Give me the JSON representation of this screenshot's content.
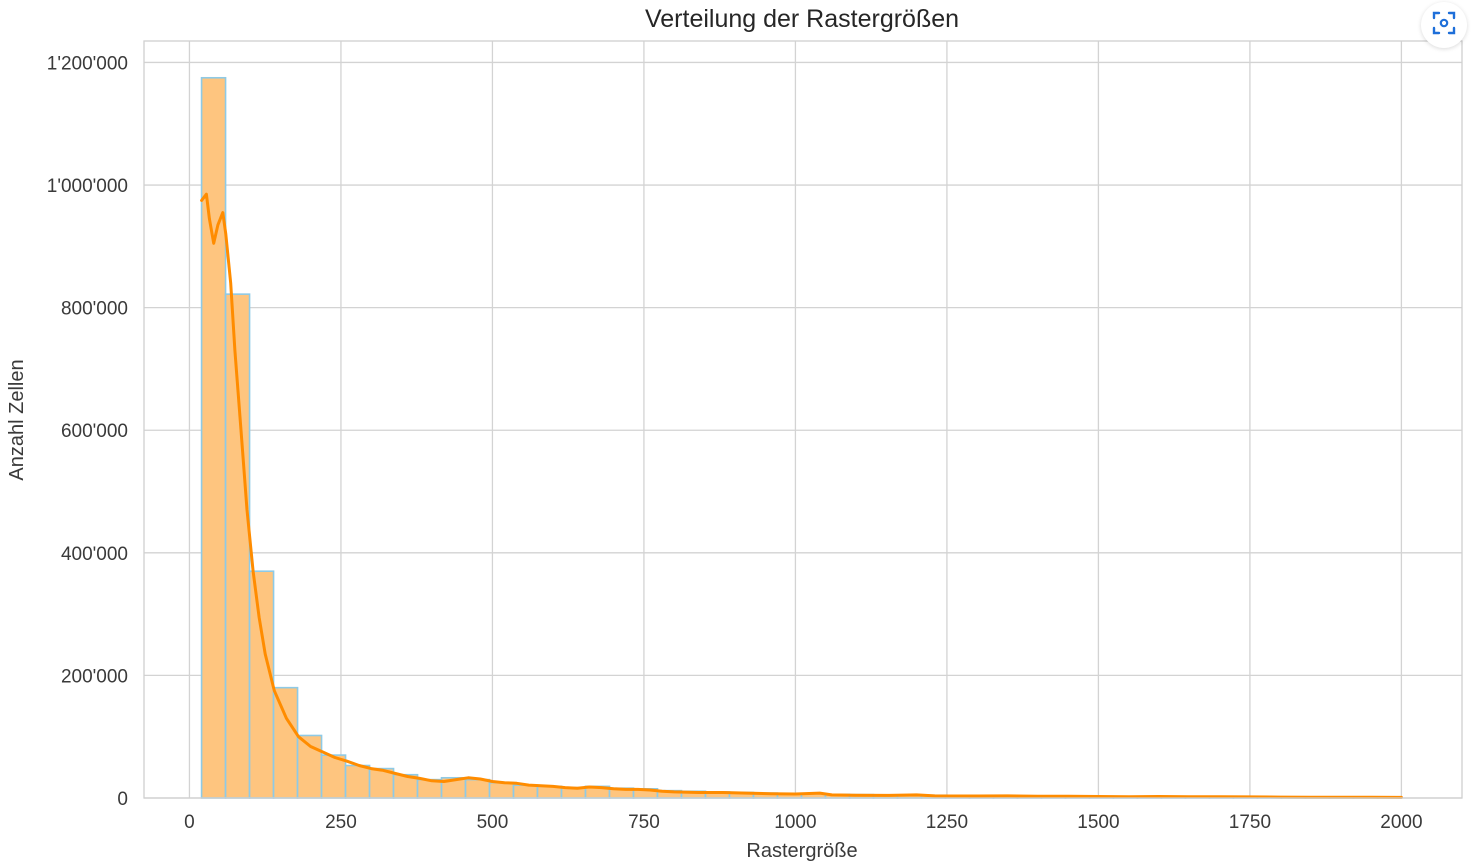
{
  "chart_data": {
    "type": "bar",
    "title": "Verteilung der Rastergrößen",
    "xlabel": "Rastergröße",
    "ylabel": "Anzahl Zellen",
    "xlim": [
      -75,
      2100
    ],
    "ylim": [
      0,
      1235000
    ],
    "x_ticks": [
      0,
      250,
      500,
      750,
      1000,
      1250,
      1500,
      1750,
      2000
    ],
    "x_tick_labels": [
      "0",
      "250",
      "500",
      "750",
      "1000",
      "1250",
      "1500",
      "1750",
      "2000"
    ],
    "y_ticks": [
      0,
      200000,
      400000,
      600000,
      800000,
      1000000,
      1200000
    ],
    "y_tick_labels": [
      "0",
      "200'000",
      "400'000",
      "600'000",
      "800'000",
      "1'000'000",
      "1'200'000"
    ],
    "grid": true,
    "bin_edges": [
      20,
      59.6,
      99.2,
      138.8,
      178.4,
      218,
      257.6,
      297.2,
      336.8,
      376.4,
      416,
      455.6,
      495.2,
      534.8,
      574.4,
      614,
      653.6,
      693.2,
      732.8,
      772.4,
      812,
      851.6,
      891.2,
      930.8,
      970.4,
      1010,
      1049.6,
      1089.2,
      1128.8,
      1168.4,
      1208,
      1247.6,
      1287.2,
      1326.8,
      1366.4,
      1406,
      1445.6,
      1485.2,
      1524.8,
      1564.4,
      1604,
      1643.6,
      1683.2,
      1722.8,
      1762.4,
      1802,
      1841.6,
      1881.2,
      1920.8,
      1960.4,
      2000
    ],
    "values": [
      1175000,
      822000,
      370000,
      180000,
      102000,
      70000,
      53000,
      48000,
      38000,
      30000,
      33000,
      30000,
      25000,
      21000,
      19000,
      17000,
      19000,
      16000,
      15000,
      12000,
      11000,
      10000,
      9000,
      8000,
      7000,
      7000,
      6000,
      5500,
      5000,
      4500,
      4500,
      4000,
      4000,
      3500,
      3500,
      3000,
      3000,
      2800,
      2600,
      2400,
      2200,
      2100,
      2000,
      1900,
      1800,
      1700,
      1600,
      1500,
      1400,
      1300
    ],
    "kde": {
      "x": [
        20,
        28,
        33,
        40,
        47,
        55,
        60,
        68,
        75,
        85,
        95,
        105,
        115,
        125,
        140,
        160,
        180,
        200,
        220,
        240,
        260,
        280,
        300,
        320,
        340,
        360,
        380,
        400,
        420,
        440,
        460,
        480,
        500,
        520,
        540,
        560,
        580,
        600,
        620,
        640,
        660,
        680,
        700,
        720,
        740,
        760,
        780,
        800,
        840,
        880,
        920,
        960,
        1000,
        1040,
        1060,
        1100,
        1150,
        1200,
        1230,
        1300,
        1350,
        1400,
        1450,
        1500,
        1550,
        1600,
        1650,
        1700,
        1750,
        1800,
        1850,
        1900,
        1950,
        2000
      ],
      "y": [
        975000,
        985000,
        945000,
        905000,
        935000,
        955000,
        920000,
        840000,
        730000,
        600000,
        470000,
        370000,
        295000,
        235000,
        175000,
        130000,
        100000,
        84000,
        75000,
        66000,
        60000,
        53000,
        48000,
        45000,
        40000,
        35000,
        32000,
        28000,
        27000,
        30000,
        33000,
        31000,
        27000,
        25000,
        24000,
        21000,
        20000,
        19000,
        17000,
        16000,
        18000,
        17000,
        15000,
        14000,
        14000,
        13000,
        11000,
        10000,
        9000,
        9000,
        8000,
        7000,
        6500,
        8000,
        5000,
        4500,
        4200,
        5000,
        3500,
        3200,
        3500,
        2800,
        3000,
        2400,
        2200,
        2500,
        2000,
        2200,
        1800,
        1500,
        1300,
        1200,
        1100,
        1000
      ]
    }
  },
  "toolbar": {
    "expand_icon_name": "focus-expand-icon"
  }
}
